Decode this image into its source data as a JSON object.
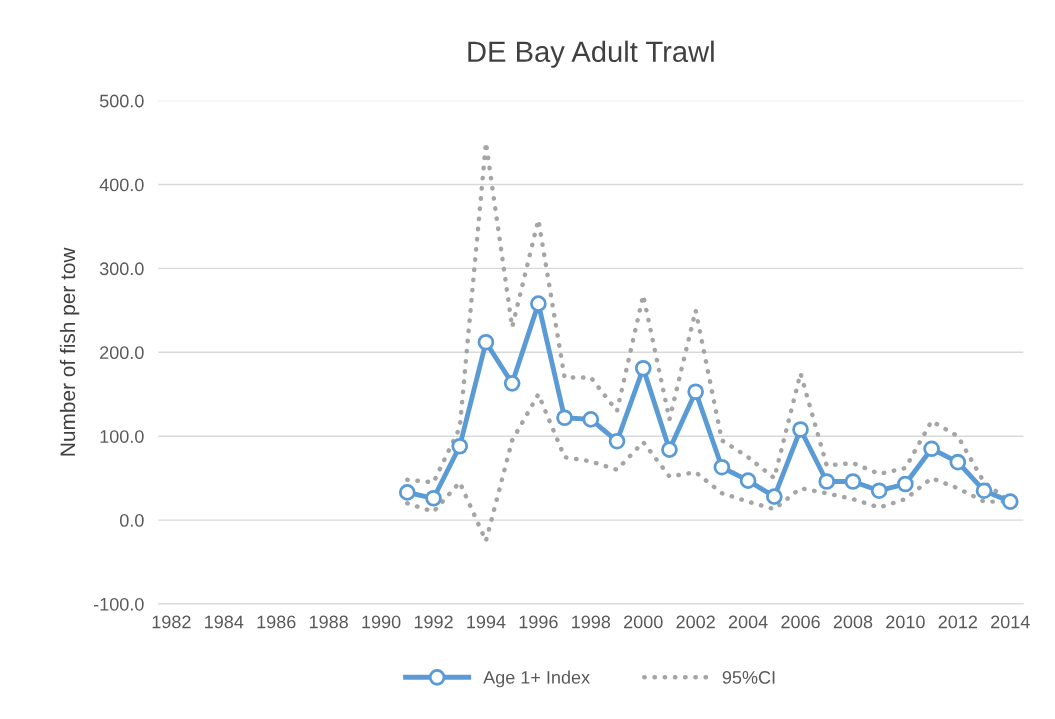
{
  "chart_data": {
    "type": "line",
    "title": "DE Bay Adult Trawl",
    "ylabel": "Number of fish per tow",
    "categories": [
      "1982",
      null,
      "1984",
      null,
      "1986",
      null,
      "1988",
      null,
      "1990",
      null,
      "1992",
      null,
      "1994",
      null,
      "1996",
      null,
      "1998",
      null,
      "2000",
      null,
      "2002",
      null,
      "2004",
      null,
      "2006",
      null,
      "2008",
      null,
      "2010",
      null,
      "2012",
      null,
      "2014"
    ],
    "series": [
      {
        "name": "Age 1+ Index",
        "color": "#5b9bd5",
        "marker": "circle",
        "line_style": "solid",
        "values": [
          null,
          null,
          null,
          null,
          null,
          null,
          null,
          null,
          null,
          33,
          26,
          88,
          212,
          163,
          258,
          122,
          120,
          94,
          181,
          84,
          153,
          63,
          47,
          28,
          108,
          46,
          46,
          35,
          43,
          85,
          69,
          35,
          22
        ]
      },
      {
        "name": "95%CI",
        "color": "#a5a5a5",
        "marker": "none",
        "line_style": "dotted",
        "values": [
          null,
          null,
          null,
          null,
          null,
          null,
          null,
          null,
          null,
          48,
          45,
          110,
          450,
          230,
          358,
          170,
          170,
          130,
          268,
          120,
          250,
          95,
          75,
          50,
          175,
          65,
          68,
          55,
          62,
          118,
          100,
          45,
          22
        ]
      },
      {
        "color": "#a5a5a5",
        "marker": "none",
        "line_style": "dotted",
        "values": [
          null,
          null,
          null,
          null,
          null,
          null,
          null,
          null,
          null,
          20,
          10,
          45,
          -25,
          95,
          150,
          75,
          70,
          60,
          93,
          52,
          57,
          32,
          22,
          13,
          38,
          32,
          25,
          15,
          25,
          50,
          38,
          22,
          22
        ]
      }
    ],
    "ylim": [
      -100,
      500
    ],
    "yticks": [
      {
        "value": -100,
        "label": "-100.0"
      },
      {
        "value": 0,
        "label": "0.0"
      },
      {
        "value": 100,
        "label": "100.0"
      },
      {
        "value": 200,
        "label": "200.0"
      },
      {
        "value": 300,
        "label": "300.0"
      },
      {
        "value": 400,
        "label": "400.0"
      },
      {
        "value": 500,
        "label": "500.0"
      }
    ],
    "grid": "y",
    "legend": "bottom"
  }
}
